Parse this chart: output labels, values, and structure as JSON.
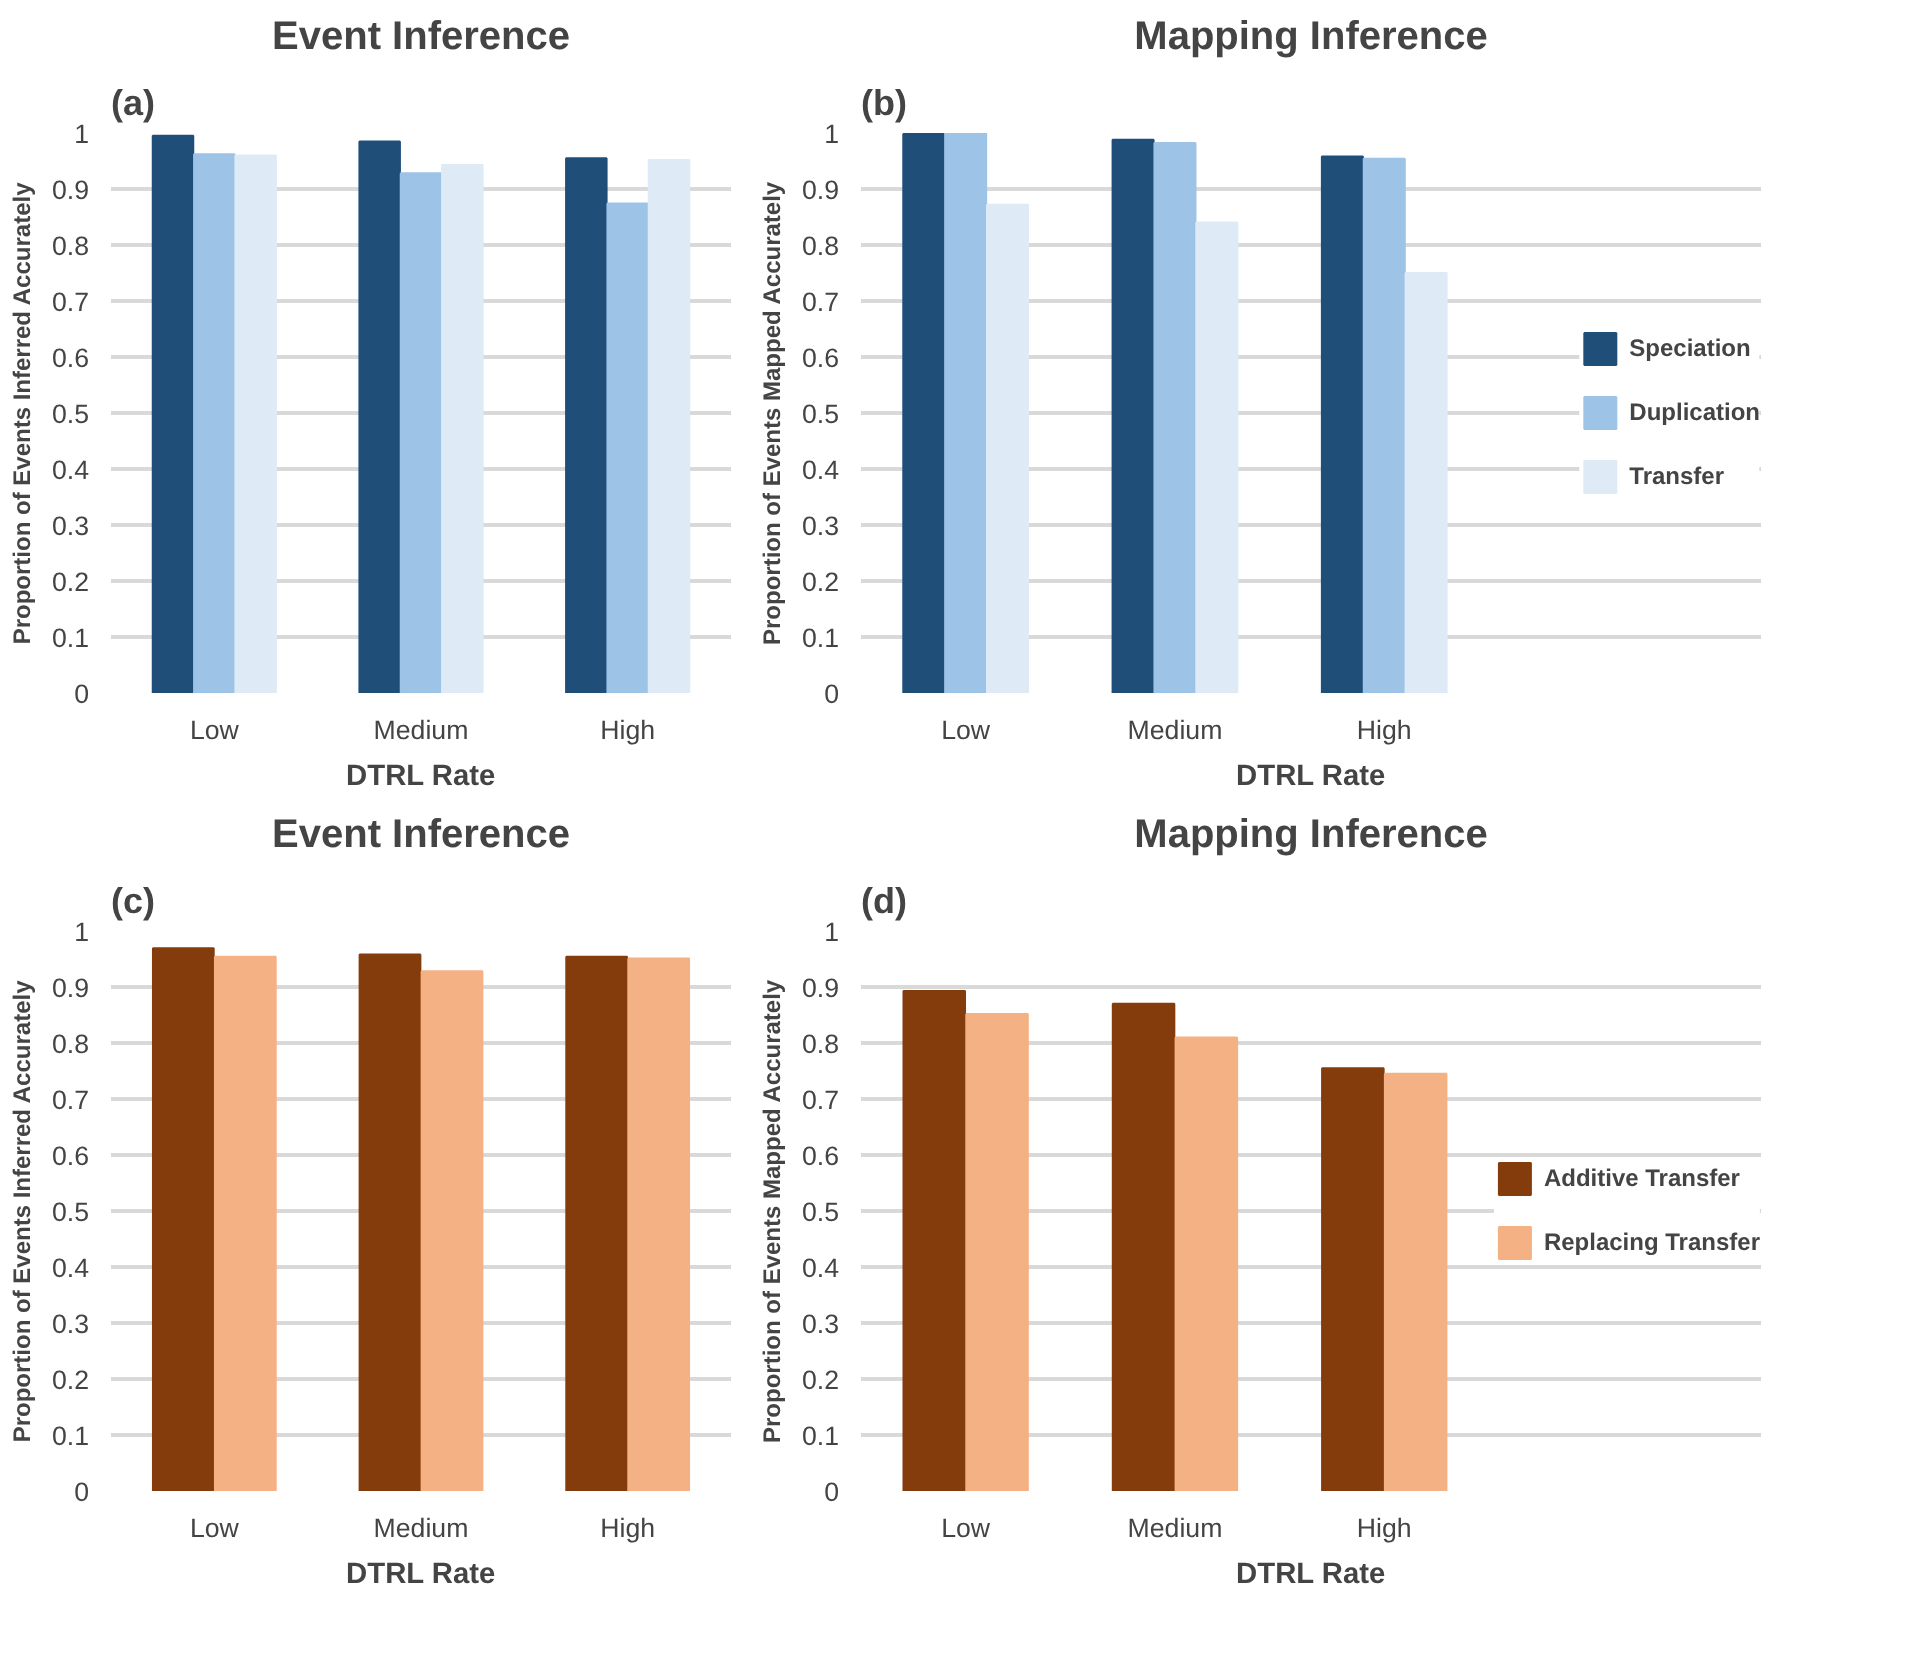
{
  "chart_data": [
    {
      "type": "bar",
      "title": "Event Inference",
      "annotations": [
        "(a)"
      ],
      "xlabel": "DTRL Rate",
      "ylabel": "Proportion of Events Inferred Accurately",
      "categories": [
        "Low",
        "Medium",
        "High"
      ],
      "series": [
        {
          "color": "#1f4e79",
          "values": [
            0.995,
            0.985,
            0.955
          ]
        },
        {
          "color": "#9dc3e6",
          "values": [
            0.962,
            0.928,
            0.874
          ]
        },
        {
          "color": "#deebf7",
          "values": [
            0.96,
            0.943,
            0.952
          ]
        }
      ],
      "ylim": [
        0,
        1
      ],
      "yticks": [
        0,
        0.1,
        0.2,
        0.3,
        0.4,
        0.5,
        0.6,
        0.7,
        0.8,
        0.9,
        1
      ],
      "grid": "y"
    },
    {
      "type": "bar",
      "title": "Mapping Inference",
      "annotations": [
        "(b)"
      ],
      "xlabel": "DTRL Rate",
      "ylabel": "Proportion of Events Mapped Accurately",
      "categories": [
        "Low",
        "Medium",
        "High"
      ],
      "series": [
        {
          "name": "Speciation",
          "color": "#1f4e79",
          "values": [
            0.998,
            0.988,
            0.958
          ]
        },
        {
          "name": "Duplication",
          "color": "#9dc3e6",
          "values": [
            1.0,
            0.982,
            0.954
          ]
        },
        {
          "name": "Transfer",
          "color": "#deebf7",
          "values": [
            0.872,
            0.84,
            0.75
          ]
        }
      ],
      "ylim": [
        0,
        1
      ],
      "yticks": [
        0,
        0.1,
        0.2,
        0.3,
        0.4,
        0.5,
        0.6,
        0.7,
        0.8,
        0.9,
        1
      ],
      "grid": "y",
      "legend": "right"
    },
    {
      "type": "bar",
      "title": "Event Inference",
      "annotations": [
        "(c)"
      ],
      "xlabel": "DTRL Rate",
      "ylabel": "Proportion of Events Inferred Accurately",
      "categories": [
        "Low",
        "Medium",
        "High"
      ],
      "series": [
        {
          "color": "#843c0c",
          "values": [
            0.969,
            0.958,
            0.954
          ]
        },
        {
          "color": "#f4b183",
          "values": [
            0.954,
            0.928,
            0.951
          ]
        }
      ],
      "ylim": [
        0,
        1
      ],
      "yticks": [
        0,
        0.1,
        0.2,
        0.3,
        0.4,
        0.5,
        0.6,
        0.7,
        0.8,
        0.9,
        1
      ],
      "grid": "y"
    },
    {
      "type": "bar",
      "title": "Mapping Inference",
      "annotations": [
        "(d)"
      ],
      "xlabel": "DTRL Rate",
      "ylabel": "Proportion of Events Mapped Accurately",
      "categories": [
        "Low",
        "Medium",
        "High"
      ],
      "series": [
        {
          "name": "Additive Transfer",
          "color": "#843c0c",
          "values": [
            0.893,
            0.87,
            0.755
          ]
        },
        {
          "name": "Replacing Transfer",
          "color": "#f4b183",
          "values": [
            0.852,
            0.81,
            0.745
          ]
        }
      ],
      "ylim": [
        0,
        1
      ],
      "yticks": [
        0,
        0.1,
        0.2,
        0.3,
        0.4,
        0.5,
        0.6,
        0.7,
        0.8,
        0.9,
        1
      ],
      "grid": "y",
      "legend": "right"
    }
  ]
}
